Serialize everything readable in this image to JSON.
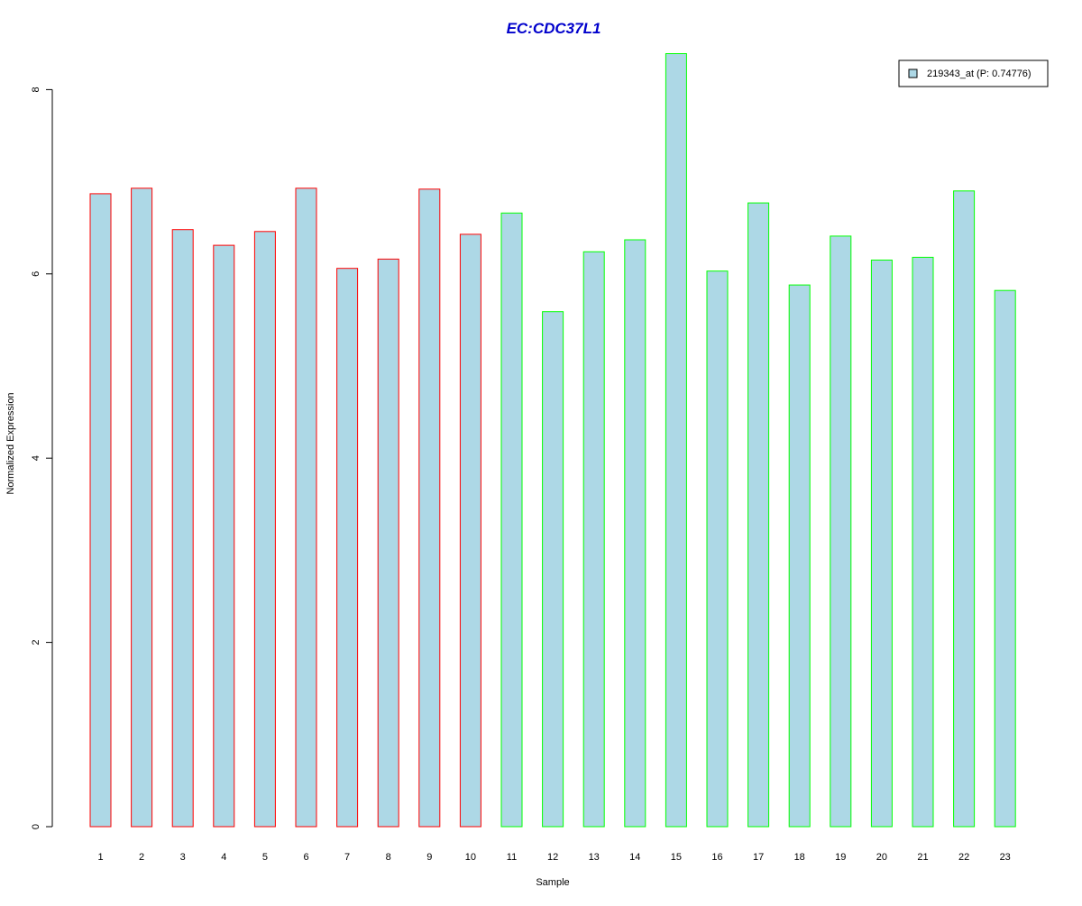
{
  "chart_data": {
    "type": "bar",
    "title": "EC:CDC37L1",
    "xlabel": "Sample",
    "ylabel": "Normalized Expression",
    "ylim": [
      0,
      8.4
    ],
    "yticks": [
      "0",
      "2",
      "4",
      "6",
      "8"
    ],
    "categories": [
      "1",
      "2",
      "3",
      "4",
      "5",
      "6",
      "7",
      "8",
      "9",
      "10",
      "11",
      "12",
      "13",
      "14",
      "15",
      "16",
      "17",
      "18",
      "19",
      "20",
      "21",
      "22",
      "23"
    ],
    "series": [
      {
        "name": "219343_at (P: 0.74776)",
        "values": [
          6.87,
          6.93,
          6.48,
          6.31,
          6.46,
          6.93,
          6.06,
          6.16,
          6.92,
          6.43,
          6.66,
          5.59,
          6.24,
          6.37,
          8.39,
          6.03,
          6.77,
          5.88,
          6.41,
          6.15,
          6.18,
          6.9,
          5.82
        ]
      }
    ],
    "group_colors": [
      "#ff0000",
      "#ff0000",
      "#ff0000",
      "#ff0000",
      "#ff0000",
      "#ff0000",
      "#ff0000",
      "#ff0000",
      "#ff0000",
      "#ff0000",
      "#00ff00",
      "#00ff00",
      "#00ff00",
      "#00ff00",
      "#00ff00",
      "#00ff00",
      "#00ff00",
      "#00ff00",
      "#00ff00",
      "#00ff00",
      "#00ff00",
      "#00ff00",
      "#00ff00"
    ],
    "bar_fill": "#add8e6",
    "title_color": "#0000cc",
    "legend_position": "top-right",
    "grid": false
  }
}
